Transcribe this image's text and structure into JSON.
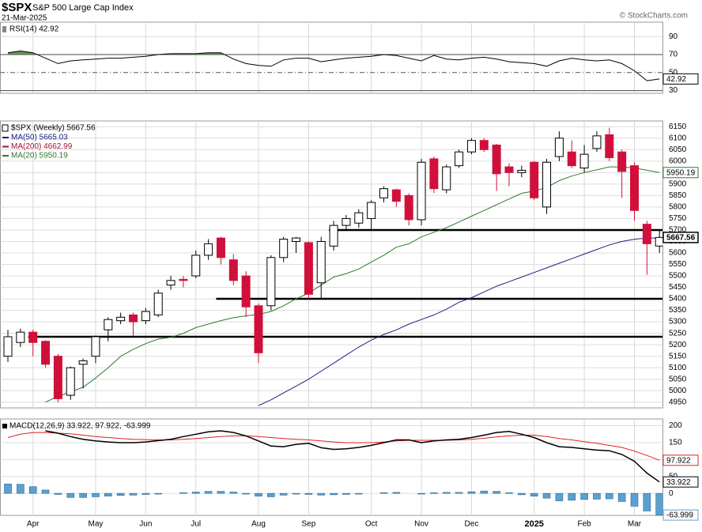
{
  "header": {
    "symbol": "$SPX",
    "name": "S&P 500 Large Cap Index",
    "date": "21-Mar-2025",
    "credit": "© StockCharts.com"
  },
  "chart_data": [
    {
      "type": "rsi",
      "title": "RSI(14) 42.92",
      "ylim": [
        27,
        106
      ],
      "yticks": [
        30,
        50,
        70,
        90
      ],
      "bands": [
        30,
        70
      ],
      "midline": 50,
      "fill_color": "#4f7f45",
      "series": [
        {
          "color": "#000000",
          "last_label": "42.92",
          "values": [
            72,
            74,
            72,
            66,
            60,
            63,
            64,
            65,
            66,
            66,
            67,
            68,
            70,
            71,
            71,
            71,
            72,
            72,
            65,
            60,
            58,
            57,
            64,
            66,
            66,
            62,
            64,
            66,
            67,
            68,
            70,
            69,
            66,
            63,
            69,
            65,
            64,
            66,
            67,
            65,
            62,
            61,
            60,
            57,
            63,
            66,
            64,
            63,
            64,
            60,
            52,
            41,
            42.92
          ]
        }
      ]
    },
    {
      "type": "candlestick",
      "title": "$SPX (Weekly) 5667.56",
      "ylim": [
        4925,
        6175
      ],
      "yticks": [
        4950,
        5000,
        5050,
        5100,
        5150,
        5200,
        5250,
        5300,
        5350,
        5400,
        5450,
        5500,
        5550,
        5600,
        5650,
        5700,
        5750,
        5800,
        5850,
        5900,
        5950,
        6000,
        6050,
        6100,
        6150
      ],
      "grid": true,
      "up_color": "#ffffff",
      "down_color": "#d0103a",
      "close_label": "5667.56",
      "xticks": [
        {
          "value": 2,
          "label": "Apr"
        },
        {
          "value": 7,
          "label": "May"
        },
        {
          "value": 11,
          "label": "Jun"
        },
        {
          "value": 15,
          "label": "Jul"
        },
        {
          "value": 20,
          "label": "Aug"
        },
        {
          "value": 24,
          "label": "Sep"
        },
        {
          "value": 29,
          "label": "Oct"
        },
        {
          "value": 33,
          "label": "Nov"
        },
        {
          "value": 37,
          "label": "Dec"
        },
        {
          "value": 42,
          "label": "2025"
        },
        {
          "value": 46,
          "label": "Feb"
        },
        {
          "value": 50,
          "label": "Mar"
        }
      ],
      "open": [
        5150,
        5210,
        5255,
        5215,
        5150,
        4980,
        5115,
        5150,
        5265,
        5305,
        5330,
        5305,
        5330,
        5460,
        5485,
        5500,
        5590,
        5665,
        5570,
        5500,
        5370,
        5370,
        5580,
        5650,
        5645,
        5470,
        5630,
        5720,
        5730,
        5750,
        5840,
        5875,
        5850,
        5745,
        6010,
        5875,
        5980,
        6040,
        6090,
        6070,
        5975,
        5950,
        5995,
        5800,
        6020,
        6040,
        5970,
        6055,
        6115,
        6040,
        5980,
        5725,
        5630
      ],
      "high": [
        5265,
        5270,
        5265,
        5220,
        5160,
        5105,
        5140,
        5240,
        5320,
        5340,
        5340,
        5360,
        5440,
        5500,
        5500,
        5610,
        5660,
        5670,
        5595,
        5520,
        5380,
        5590,
        5670,
        5670,
        5650,
        5670,
        5740,
        5765,
        5790,
        5830,
        5890,
        5880,
        5860,
        6010,
        6020,
        5985,
        6050,
        6100,
        6100,
        6075,
        5990,
        5980,
        6000,
        6010,
        6130,
        6090,
        6070,
        6130,
        6145,
        6050,
        5995,
        5740,
        5700
      ],
      "low": [
        5125,
        5190,
        5150,
        5100,
        4950,
        4960,
        5010,
        5120,
        5215,
        5290,
        5240,
        5290,
        5320,
        5440,
        5450,
        5490,
        5570,
        5550,
        5460,
        5320,
        5120,
        5350,
        5560,
        5600,
        5400,
        5400,
        5610,
        5700,
        5710,
        5700,
        5820,
        5800,
        5720,
        5720,
        5860,
        5860,
        5970,
        6030,
        6040,
        5870,
        5890,
        5930,
        5830,
        5770,
        6000,
        5970,
        5950,
        6040,
        6000,
        5840,
        5740,
        5505,
        5600
      ],
      "close": [
        5235,
        5255,
        5210,
        5115,
        4965,
        5100,
        5130,
        5235,
        5310,
        5320,
        5300,
        5345,
        5425,
        5480,
        5480,
        5590,
        5640,
        5580,
        5480,
        5365,
        5165,
        5580,
        5660,
        5665,
        5420,
        5650,
        5720,
        5750,
        5775,
        5820,
        5880,
        5825,
        5745,
        5995,
        5880,
        5975,
        6040,
        6090,
        6050,
        5945,
        5950,
        5960,
        5840,
        5995,
        6100,
        5980,
        6030,
        6110,
        6015,
        5955,
        5785,
        5640,
        5667.56
      ],
      "lines": [
        {
          "value": 5700,
          "from": 26
        },
        {
          "value": 5400,
          "from": 17
        },
        {
          "value": 5235,
          "from": 2
        }
      ],
      "series": [
        {
          "name": "MA(50) 5665.03",
          "color": "#1a237e",
          "values": [
            null,
            null,
            null,
            null,
            null,
            null,
            null,
            null,
            null,
            null,
            null,
            null,
            null,
            null,
            null,
            null,
            null,
            null,
            null,
            null,
            4935,
            4960,
            4990,
            5020,
            5050,
            5085,
            5120,
            5155,
            5190,
            5220,
            5245,
            5265,
            5290,
            5310,
            5330,
            5355,
            5385,
            5405,
            5430,
            5455,
            5475,
            5495,
            5515,
            5535,
            5555,
            5575,
            5595,
            5615,
            5635,
            5650,
            5660,
            5665,
            5665.03
          ]
        },
        {
          "name": "MA(200) 4662.99",
          "color": "#a01040"
        },
        {
          "name": "MA(20) 5950.19",
          "color": "#2d7a2d",
          "last_label": "5950.19",
          "values": [
            null,
            null,
            null,
            4950,
            4975,
            4995,
            5015,
            5055,
            5100,
            5150,
            5180,
            5205,
            5225,
            5232,
            5250,
            5275,
            5290,
            5305,
            5318,
            5326,
            5332,
            5345,
            5370,
            5400,
            5425,
            5460,
            5495,
            5510,
            5530,
            5560,
            5590,
            5625,
            5640,
            5670,
            5690,
            5710,
            5735,
            5760,
            5785,
            5810,
            5835,
            5860,
            5870,
            5885,
            5915,
            5935,
            5950,
            5962,
            5975,
            5975,
            5970,
            5960,
            5950.19
          ]
        }
      ]
    },
    {
      "type": "macd",
      "title": "MACD(12,26,9) 33.922, 97.922, -63.999",
      "ylim": [
        -65,
        220
      ],
      "yticks": [
        0,
        50,
        100,
        150,
        200
      ],
      "grid": true,
      "series": [
        {
          "kind": "bar",
          "color": "#5aa0d0",
          "last_label": "-63.999",
          "values": [
            28,
            27,
            20,
            10,
            -3,
            -12,
            -12,
            -10,
            -8,
            -6,
            -5,
            -3,
            -2,
            0,
            2,
            4,
            6,
            6,
            4,
            -2,
            -8,
            -10,
            -5,
            -2,
            -3,
            -5,
            -4,
            -3,
            -2,
            0,
            2,
            3,
            0,
            -2,
            2,
            3,
            3,
            5,
            7,
            6,
            2,
            -4,
            -8,
            -14,
            -22,
            -20,
            -18,
            -17,
            -16,
            -24,
            -38,
            -52,
            -63.999
          ]
        },
        {
          "kind": "line",
          "color": "#e02020",
          "last_label": "97.922",
          "values": [
            165,
            175,
            180,
            180,
            178,
            176,
            172,
            168,
            165,
            162,
            160,
            159,
            158,
            158,
            160,
            162,
            165,
            168,
            170,
            170,
            168,
            165,
            162,
            160,
            158,
            155,
            152,
            150,
            150,
            150,
            152,
            155,
            157,
            157,
            157,
            157,
            158,
            160,
            163,
            167,
            170,
            172,
            172,
            168,
            162,
            158,
            153,
            148,
            142,
            136,
            125,
            112,
            97.922
          ]
        },
        {
          "kind": "line",
          "color": "#000000",
          "last_label": "33.922",
          "values": [
            null,
            null,
            null,
            185,
            178,
            168,
            160,
            155,
            152,
            150,
            150,
            152,
            156,
            160,
            168,
            175,
            182,
            185,
            180,
            170,
            155,
            140,
            138,
            145,
            148,
            135,
            130,
            132,
            136,
            142,
            150,
            158,
            158,
            150,
            155,
            158,
            160,
            165,
            172,
            180,
            183,
            175,
            165,
            150,
            138,
            136,
            132,
            128,
            126,
            115,
            95,
            60,
            33.922
          ]
        }
      ]
    }
  ]
}
